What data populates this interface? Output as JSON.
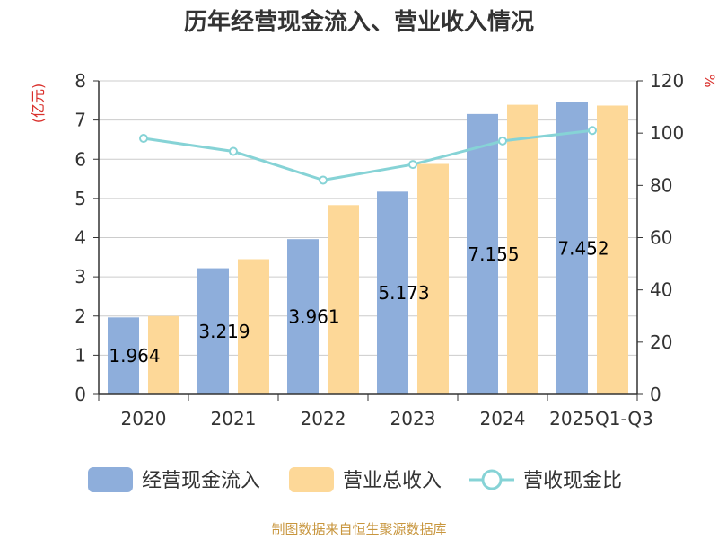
{
  "chart_data": {
    "type": "bar",
    "title": "历年经营现金流入、营业收入情况",
    "categories": [
      "2020",
      "2021",
      "2022",
      "2023",
      "2024",
      "2025Q1-Q3"
    ],
    "left_axis": {
      "unit": "(亿元)",
      "range": [
        0,
        8
      ],
      "ticks": [
        0,
        1,
        2,
        3,
        4,
        5,
        6,
        7,
        8
      ]
    },
    "right_axis": {
      "unit": "%",
      "range": [
        0,
        120
      ],
      "ticks": [
        0,
        20,
        40,
        60,
        80,
        100,
        120
      ]
    },
    "series": [
      {
        "name": "经营现金流入",
        "type": "bar",
        "axis": "left",
        "color": "#8eaedb",
        "values": [
          1.964,
          3.219,
          3.961,
          5.173,
          7.155,
          7.452
        ],
        "labels": [
          "1.964",
          "3.219",
          "3.961",
          "5.173",
          "7.155",
          "7.452"
        ]
      },
      {
        "name": "营业总收入",
        "type": "bar",
        "axis": "left",
        "color": "#fdd898",
        "values": [
          2.0,
          3.45,
          4.83,
          5.88,
          7.39,
          7.37
        ]
      },
      {
        "name": "营收现金比",
        "type": "line",
        "axis": "right",
        "color": "#86d3d6",
        "values": [
          98.0,
          93.0,
          82.0,
          88.0,
          97.0,
          101.0
        ]
      }
    ],
    "grid": true,
    "legend_position": "bottom",
    "source": "制图数据来自恒生聚源数据库"
  }
}
